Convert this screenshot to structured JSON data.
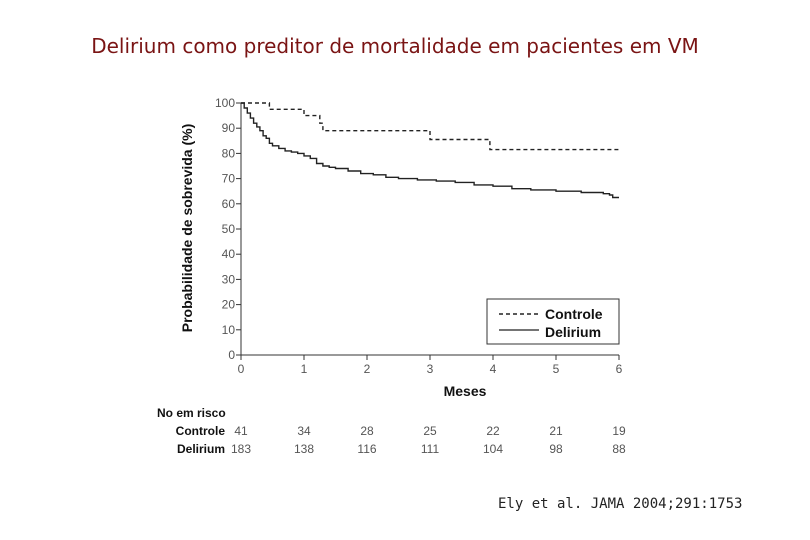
{
  "slide": {
    "title": "Delirium como preditor de mortalidade em pacientes em VM",
    "citation": "Ely et al. JAMA 2004;291:1753"
  },
  "chart_data": {
    "type": "line",
    "step": true,
    "xlabel": "Meses",
    "ylabel": "Probabilidade de sobrevida (%)",
    "xlim": [
      0,
      6
    ],
    "ylim": [
      0,
      100
    ],
    "x_ticks": [
      "0",
      "1",
      "2",
      "3",
      "4",
      "5",
      "6"
    ],
    "y_ticks": [
      "0",
      "10",
      "20",
      "30",
      "40",
      "50",
      "60",
      "70",
      "80",
      "90",
      "100"
    ],
    "grid": false,
    "legend_position": "bottom-right",
    "series": [
      {
        "name": "Controle",
        "style": "dashed",
        "color": "#222222",
        "x": [
          0,
          0.45,
          0.45,
          1.0,
          1.0,
          1.25,
          1.25,
          1.3,
          1.3,
          3.0,
          3.0,
          3.95,
          3.95,
          6.0
        ],
        "y": [
          100,
          100,
          97.5,
          97.5,
          95,
          95,
          92,
          92,
          89,
          89,
          85.5,
          85.5,
          81.5,
          81.5
        ]
      },
      {
        "name": "Delirium",
        "style": "solid",
        "color": "#222222",
        "x": [
          0,
          0.05,
          0.1,
          0.15,
          0.2,
          0.25,
          0.3,
          0.35,
          0.4,
          0.45,
          0.5,
          0.6,
          0.7,
          0.8,
          0.9,
          1.0,
          1.1,
          1.2,
          1.3,
          1.4,
          1.5,
          1.7,
          1.9,
          2.1,
          2.3,
          2.5,
          2.8,
          3.1,
          3.4,
          3.7,
          4.0,
          4.3,
          4.6,
          5.0,
          5.4,
          5.75,
          5.85,
          5.9,
          6.0
        ],
        "y": [
          100,
          98,
          96,
          94,
          92,
          90.5,
          89,
          87,
          86,
          84,
          83,
          82,
          81,
          80.5,
          80,
          79,
          78,
          76,
          75,
          74.5,
          74,
          73,
          72,
          71.5,
          70.5,
          70,
          69.5,
          69,
          68.5,
          67.5,
          67,
          66,
          65.5,
          65,
          64.5,
          64,
          63.5,
          62.5,
          62.5
        ]
      }
    ],
    "risk_table": {
      "title": "No em risco",
      "rows": [
        {
          "label": "Controle",
          "values": [
            "41",
            "34",
            "28",
            "25",
            "22",
            "21",
            "19"
          ]
        },
        {
          "label": "Delirium",
          "values": [
            "183",
            "138",
            "116",
            "111",
            "104",
            "98",
            "88"
          ]
        }
      ]
    }
  }
}
